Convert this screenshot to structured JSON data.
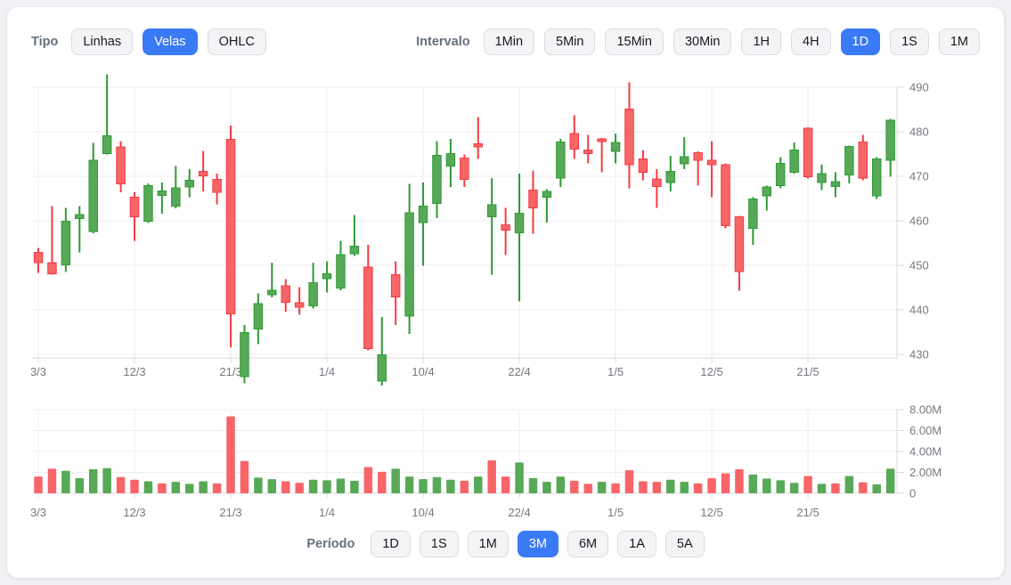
{
  "toolbar": {
    "type_label": "Tipo",
    "type_options": [
      {
        "label": "Linhas",
        "active": false
      },
      {
        "label": "Velas",
        "active": true
      },
      {
        "label": "OHLC",
        "active": false
      }
    ],
    "interval_label": "Intervalo",
    "interval_options": [
      {
        "label": "1Min",
        "active": false
      },
      {
        "label": "5Min",
        "active": false
      },
      {
        "label": "15Min",
        "active": false
      },
      {
        "label": "30Min",
        "active": false
      },
      {
        "label": "1H",
        "active": false
      },
      {
        "label": "4H",
        "active": false
      },
      {
        "label": "1D",
        "active": true
      },
      {
        "label": "1S",
        "active": false
      },
      {
        "label": "1M",
        "active": false
      }
    ]
  },
  "period": {
    "label": "Período",
    "options": [
      {
        "label": "1D",
        "active": false
      },
      {
        "label": "1S",
        "active": false
      },
      {
        "label": "1M",
        "active": false
      },
      {
        "label": "3M",
        "active": true
      },
      {
        "label": "6M",
        "active": false
      },
      {
        "label": "1A",
        "active": false
      },
      {
        "label": "5A",
        "active": false
      }
    ]
  },
  "colors": {
    "accent": "#3b7af7",
    "up_border": "#2e9a34",
    "up_fill": "#57a957",
    "down_border": "#f43b42",
    "down_fill": "#f76568",
    "grid": "#ececec",
    "axis": "#d9dbde",
    "tick_text": "#74797f"
  },
  "chart_data": {
    "type": "candlestick+volume-bar",
    "title": "",
    "price_axis": {
      "ticks": [
        490,
        480,
        470,
        460,
        450,
        440,
        430
      ],
      "side": "right",
      "range_bottom": 429
    },
    "volume_axis": {
      "tick_values": [
        8,
        6,
        4,
        2,
        0
      ],
      "tick_labels": [
        "8.00M",
        "6.00M",
        "4.00M",
        "2.00M",
        "0"
      ],
      "side": "right"
    },
    "x_tick_labels": [
      "3/3",
      "12/3",
      "21/3",
      "1/4",
      "10/4",
      "22/4",
      "1/5",
      "12/5",
      "21/5"
    ],
    "x_tick_indices": [
      0,
      7,
      14,
      21,
      28,
      35,
      42,
      49,
      56
    ],
    "grid": true,
    "candles_ohlc": [
      [
        452.9,
        453.9,
        448.3,
        450.6
      ],
      [
        450.6,
        463.3,
        447.9,
        448.1
      ],
      [
        450.1,
        462.9,
        448.5,
        459.9
      ],
      [
        460.5,
        463.3,
        452.9,
        461.4
      ],
      [
        457.6,
        477.5,
        457.2,
        473.6
      ],
      [
        475.1,
        492.9,
        474.9,
        479.1
      ],
      [
        476.6,
        477.9,
        466.4,
        468.3
      ],
      [
        465.3,
        466.4,
        455.5,
        460.9
      ],
      [
        459.9,
        468.4,
        459.5,
        467.9
      ],
      [
        465.7,
        468.6,
        461.6,
        466.7
      ],
      [
        463.3,
        472.3,
        462.8,
        467.4
      ],
      [
        467.6,
        471.6,
        465.3,
        469.1
      ],
      [
        471.1,
        475.7,
        466.6,
        470.1
      ],
      [
        469.3,
        470.6,
        463.7,
        466.4
      ],
      [
        478.3,
        481.4,
        431.6,
        439.1
      ],
      [
        425.0,
        436.6,
        423.5,
        434.9
      ],
      [
        435.7,
        443.7,
        432.3,
        441.4
      ],
      [
        443.4,
        450.6,
        442.8,
        444.4
      ],
      [
        445.4,
        446.9,
        439.6,
        441.7
      ],
      [
        441.6,
        445.1,
        438.9,
        440.6
      ],
      [
        440.9,
        450.6,
        440.3,
        446.1
      ],
      [
        447.0,
        450.9,
        443.9,
        448.1
      ],
      [
        444.9,
        455.5,
        444.4,
        452.4
      ],
      [
        452.6,
        461.3,
        452.1,
        454.3
      ],
      [
        449.6,
        454.6,
        430.9,
        431.3
      ],
      [
        424.0,
        438.4,
        423.0,
        429.9
      ],
      [
        447.9,
        450.9,
        436.6,
        442.9
      ],
      [
        438.6,
        468.3,
        434.6,
        461.8
      ],
      [
        459.6,
        468.6,
        449.9,
        463.3
      ],
      [
        463.9,
        477.9,
        460.6,
        474.7
      ],
      [
        472.3,
        478.4,
        467.6,
        475.1
      ],
      [
        474.1,
        474.9,
        467.6,
        469.3
      ],
      [
        477.3,
        483.3,
        473.9,
        476.6
      ],
      [
        460.9,
        469.6,
        447.9,
        463.6
      ],
      [
        459.1,
        462.9,
        452.3,
        457.9
      ],
      [
        457.3,
        470.6,
        441.9,
        461.7
      ],
      [
        466.9,
        471.3,
        457.1,
        462.9
      ],
      [
        465.3,
        467.1,
        459.6,
        466.6
      ],
      [
        469.6,
        478.4,
        467.6,
        477.7
      ],
      [
        479.6,
        483.7,
        473.9,
        476.1
      ],
      [
        475.9,
        479.3,
        472.9,
        475.1
      ],
      [
        478.4,
        478.6,
        470.9,
        477.8
      ],
      [
        475.6,
        479.6,
        472.9,
        477.6
      ],
      [
        485.1,
        491.1,
        467.3,
        472.6
      ],
      [
        473.9,
        475.9,
        469.1,
        470.9
      ],
      [
        469.4,
        471.6,
        462.9,
        467.7
      ],
      [
        468.6,
        474.6,
        466.6,
        471.1
      ],
      [
        472.8,
        478.8,
        471.6,
        474.4
      ],
      [
        475.3,
        475.6,
        467.9,
        473.6
      ],
      [
        473.6,
        477.9,
        465.3,
        472.6
      ],
      [
        472.6,
        472.9,
        458.3,
        458.9
      ],
      [
        460.9,
        461.1,
        444.3,
        448.6
      ],
      [
        458.3,
        465.3,
        454.6,
        464.9
      ],
      [
        465.6,
        467.9,
        462.3,
        467.6
      ],
      [
        467.9,
        474.3,
        467.3,
        472.9
      ],
      [
        470.9,
        477.6,
        470.6,
        475.9
      ],
      [
        480.8,
        481.0,
        469.5,
        469.9
      ],
      [
        468.6,
        472.6,
        466.9,
        470.6
      ],
      [
        467.7,
        470.9,
        465.3,
        468.8
      ],
      [
        470.3,
        476.9,
        468.4,
        476.7
      ],
      [
        477.7,
        479.3,
        469.1,
        469.6
      ],
      [
        465.6,
        474.3,
        464.9,
        473.9
      ],
      [
        473.6,
        482.9,
        469.9,
        482.6
      ]
    ],
    "volumes_millions": [
      1.6,
      2.35,
      2.15,
      1.45,
      2.3,
      2.4,
      1.55,
      1.3,
      1.15,
      0.95,
      1.1,
      0.9,
      1.15,
      0.95,
      7.35,
      3.1,
      1.5,
      1.35,
      1.15,
      1.0,
      1.3,
      1.25,
      1.4,
      1.2,
      2.5,
      2.05,
      2.35,
      1.6,
      1.35,
      1.55,
      1.3,
      1.2,
      1.6,
      3.15,
      1.6,
      2.95,
      1.45,
      1.1,
      1.6,
      1.2,
      0.9,
      1.1,
      0.95,
      2.2,
      1.15,
      1.1,
      1.3,
      1.1,
      0.95,
      1.45,
      1.9,
      2.3,
      1.8,
      1.4,
      1.25,
      1.0,
      1.65,
      0.9,
      0.95,
      1.65,
      1.05,
      0.85,
      2.35
    ]
  }
}
